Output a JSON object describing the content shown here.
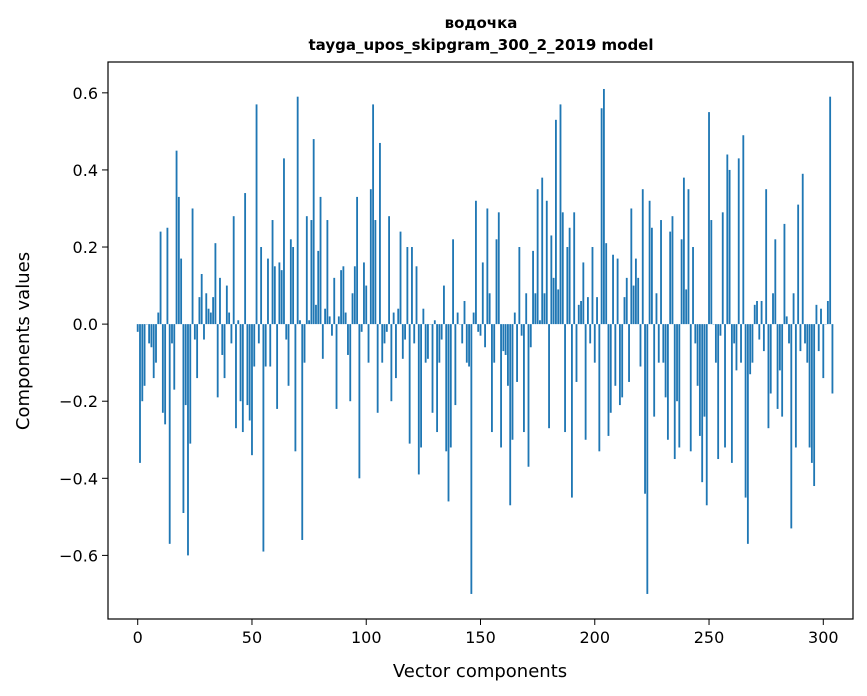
{
  "chart_data": {
    "type": "bar",
    "title_line1": "водочка",
    "title_line2": "tayga_upos_skipgram_300_2_2019 model",
    "xlabel": "Vector components",
    "ylabel": "Components values",
    "xlim": [
      -13,
      313
    ],
    "ylim": [
      -0.765,
      0.68
    ],
    "xticks": [
      0,
      50,
      100,
      150,
      200,
      250,
      300
    ],
    "xtick_labels": [
      "0",
      "50",
      "100",
      "150",
      "200",
      "250",
      "300"
    ],
    "yticks": [
      -0.6,
      -0.4,
      -0.2,
      0.0,
      0.2,
      0.4,
      0.6
    ],
    "ytick_labels": [
      "−0.6",
      "−0.4",
      "−0.2",
      "0.0",
      "0.2",
      "0.4",
      "0.6"
    ],
    "bar_color": "#1f77b4",
    "values": [
      -0.02,
      -0.36,
      -0.2,
      -0.16,
      0.0,
      -0.05,
      -0.06,
      -0.14,
      -0.1,
      0.03,
      0.24,
      -0.23,
      -0.26,
      0.25,
      -0.57,
      -0.05,
      -0.17,
      0.45,
      0.33,
      0.17,
      -0.49,
      -0.21,
      -0.6,
      -0.31,
      0.3,
      -0.04,
      -0.14,
      0.07,
      0.13,
      -0.04,
      0.08,
      0.04,
      0.03,
      0.07,
      0.21,
      -0.19,
      0.12,
      -0.08,
      -0.14,
      0.1,
      0.03,
      -0.05,
      0.28,
      -0.27,
      0.01,
      -0.2,
      -0.28,
      0.34,
      -0.21,
      -0.25,
      -0.34,
      -0.11,
      0.57,
      -0.05,
      0.2,
      -0.59,
      -0.11,
      0.17,
      -0.11,
      0.27,
      0.15,
      -0.22,
      0.16,
      0.14,
      0.43,
      -0.04,
      -0.16,
      0.22,
      0.2,
      -0.33,
      0.59,
      0.01,
      -0.56,
      -0.1,
      0.28,
      0.01,
      0.27,
      0.48,
      0.05,
      0.19,
      0.33,
      -0.09,
      0.04,
      0.27,
      0.02,
      -0.03,
      0.12,
      -0.22,
      0.02,
      0.14,
      0.15,
      0.03,
      -0.08,
      -0.2,
      0.08,
      0.15,
      0.33,
      -0.4,
      -0.02,
      0.16,
      0.1,
      -0.1,
      0.35,
      0.57,
      0.27,
      -0.23,
      0.47,
      -0.1,
      -0.05,
      -0.02,
      0.28,
      -0.2,
      0.03,
      -0.14,
      0.04,
      0.24,
      -0.09,
      -0.04,
      0.2,
      -0.31,
      0.2,
      -0.05,
      0.15,
      -0.39,
      -0.32,
      0.04,
      -0.1,
      -0.09,
      0.0,
      -0.23,
      0.01,
      -0.28,
      -0.1,
      -0.04,
      0.1,
      -0.33,
      -0.46,
      -0.32,
      0.22,
      -0.21,
      0.03,
      0.0,
      -0.05,
      0.06,
      -0.1,
      -0.11,
      -0.7,
      0.03,
      0.32,
      -0.02,
      -0.03,
      0.16,
      -0.06,
      0.3,
      0.08,
      -0.28,
      -0.1,
      0.22,
      0.29,
      -0.32,
      -0.07,
      -0.08,
      -0.16,
      -0.47,
      -0.3,
      0.03,
      -0.15,
      0.2,
      -0.03,
      -0.28,
      0.08,
      -0.37,
      -0.06,
      0.19,
      0.08,
      0.35,
      0.01,
      0.38,
      0.08,
      0.32,
      -0.27,
      0.23,
      0.12,
      0.53,
      0.09,
      0.57,
      0.29,
      -0.28,
      0.2,
      0.25,
      -0.45,
      0.29,
      -0.15,
      0.05,
      0.06,
      0.16,
      -0.3,
      0.07,
      -0.05,
      0.2,
      -0.1,
      0.07,
      -0.33,
      0.56,
      0.61,
      0.21,
      -0.29,
      -0.23,
      0.18,
      -0.16,
      0.17,
      -0.21,
      -0.19,
      0.07,
      0.12,
      -0.15,
      0.3,
      0.1,
      0.17,
      0.12,
      -0.11,
      0.35,
      -0.44,
      -0.7,
      0.32,
      0.25,
      -0.24,
      0.08,
      -0.1,
      0.27,
      -0.1,
      -0.19,
      -0.3,
      0.24,
      0.28,
      -0.35,
      -0.2,
      -0.32,
      0.22,
      0.38,
      0.09,
      0.35,
      -0.33,
      0.2,
      -0.05,
      -0.16,
      -0.29,
      -0.41,
      -0.24,
      -0.47,
      0.55,
      0.27,
      0.0,
      -0.1,
      -0.35,
      -0.03,
      0.29,
      -0.32,
      0.44,
      0.4,
      -0.36,
      -0.05,
      -0.12,
      0.43,
      -0.1,
      0.49,
      -0.45,
      -0.57,
      -0.13,
      -0.1,
      0.05,
      0.06,
      -0.04,
      0.06,
      -0.07,
      0.35,
      -0.27,
      -0.18,
      0.08,
      0.22,
      -0.22,
      -0.12,
      -0.24,
      0.26,
      0.02,
      -0.05,
      -0.53,
      0.08,
      -0.32,
      0.31,
      -0.07,
      0.39,
      -0.05,
      -0.1,
      -0.32,
      -0.36,
      -0.42,
      0.05,
      -0.07,
      0.04,
      -0.14,
      0.0,
      0.06,
      0.59,
      -0.18
    ]
  }
}
